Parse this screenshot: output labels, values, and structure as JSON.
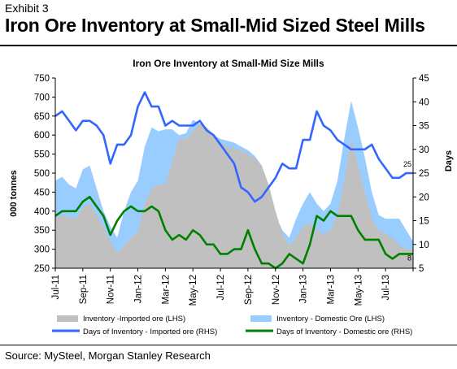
{
  "exhibit_label": "Exhibit 3",
  "headline": "Iron Ore Inventory at Small-Mid Sized Steel Mills",
  "source": "Source: MySteel, Morgan Stanley Research",
  "chart_data": {
    "type": "area",
    "title": "Iron Ore Inventory at Small-Mid Size Mills",
    "ylabel_left": "000 tonnes",
    "ylabel_right": "Days",
    "ylim_left": [
      250,
      750
    ],
    "ylim_right": [
      5,
      45
    ],
    "left_ticks": [
      250,
      300,
      350,
      400,
      450,
      500,
      550,
      600,
      650,
      700,
      750
    ],
    "right_ticks": [
      5,
      10,
      15,
      20,
      25,
      30,
      35,
      40,
      45
    ],
    "x_tick_labels": [
      "Jul-11",
      "Sep-11",
      "Nov-11",
      "Jan-12",
      "Mar-12",
      "May-12",
      "Jul-12",
      "Sep-12",
      "Nov-12",
      "Jan-13",
      "Mar-13",
      "May-13",
      "Jul-13"
    ],
    "n_points": 53,
    "legend_position": "bottom",
    "grid": false,
    "series": [
      {
        "name": "Inventory -Imported ore (LHS)",
        "type": "area",
        "axis": "left",
        "color": "#c0c0c0",
        "values": [
          380,
          390,
          385,
          380,
          410,
          420,
          390,
          360,
          320,
          290,
          310,
          330,
          345,
          420,
          460,
          470,
          470,
          530,
          590,
          590,
          610,
          630,
          620,
          600,
          580,
          570,
          565,
          560,
          550,
          540,
          520,
          470,
          400,
          340,
          310,
          330,
          360,
          370,
          350,
          340,
          350,
          390,
          480,
          590,
          520,
          450,
          380,
          350,
          340,
          330,
          310,
          300,
          300
        ]
      },
      {
        "name": "Inventory - Domestic Ore (LHS)",
        "type": "area",
        "axis": "left",
        "color": "#99ccff",
        "values": [
          480,
          490,
          470,
          460,
          510,
          520,
          460,
          400,
          360,
          330,
          400,
          450,
          480,
          570,
          620,
          610,
          615,
          615,
          600,
          605,
          640,
          630,
          620,
          600,
          590,
          585,
          580,
          570,
          560,
          545,
          520,
          460,
          390,
          350,
          330,
          380,
          420,
          450,
          420,
          400,
          420,
          480,
          590,
          690,
          620,
          540,
          450,
          390,
          380,
          380,
          380,
          350,
          320
        ]
      },
      {
        "name": "Days of Inventory - Imported ore (RHS)",
        "type": "line",
        "axis": "right",
        "color": "#3366ff",
        "values": [
          37,
          38,
          36,
          34,
          36,
          36,
          35,
          33,
          27,
          31,
          31,
          33,
          39,
          42,
          39,
          39,
          35,
          36,
          35,
          35,
          35,
          36,
          34,
          33,
          31,
          29,
          27,
          22,
          21,
          19,
          20,
          22,
          24,
          27,
          26,
          26,
          32,
          32,
          38,
          35,
          34,
          32,
          31,
          30,
          30,
          30,
          31,
          28,
          26,
          24,
          24,
          25,
          25
        ]
      },
      {
        "name": "Days of Inventory - Domestic ore (RHS)",
        "type": "line",
        "axis": "right",
        "color": "#008000",
        "values": [
          16,
          17,
          17,
          17,
          19,
          20,
          18,
          16,
          12,
          15,
          17,
          18,
          17,
          17,
          18,
          17,
          13,
          11,
          12,
          11,
          13,
          12,
          10,
          10,
          8,
          8,
          9,
          9,
          13,
          9,
          6,
          6,
          5,
          6,
          8,
          7,
          6,
          10,
          16,
          15,
          17,
          16,
          16,
          16,
          13,
          11,
          11,
          11,
          8,
          7,
          8,
          8,
          8
        ]
      }
    ],
    "annotations": [
      {
        "text": "25",
        "series": 2,
        "point": 52
      },
      {
        "text": "8",
        "series": 3,
        "point": 52
      }
    ]
  }
}
